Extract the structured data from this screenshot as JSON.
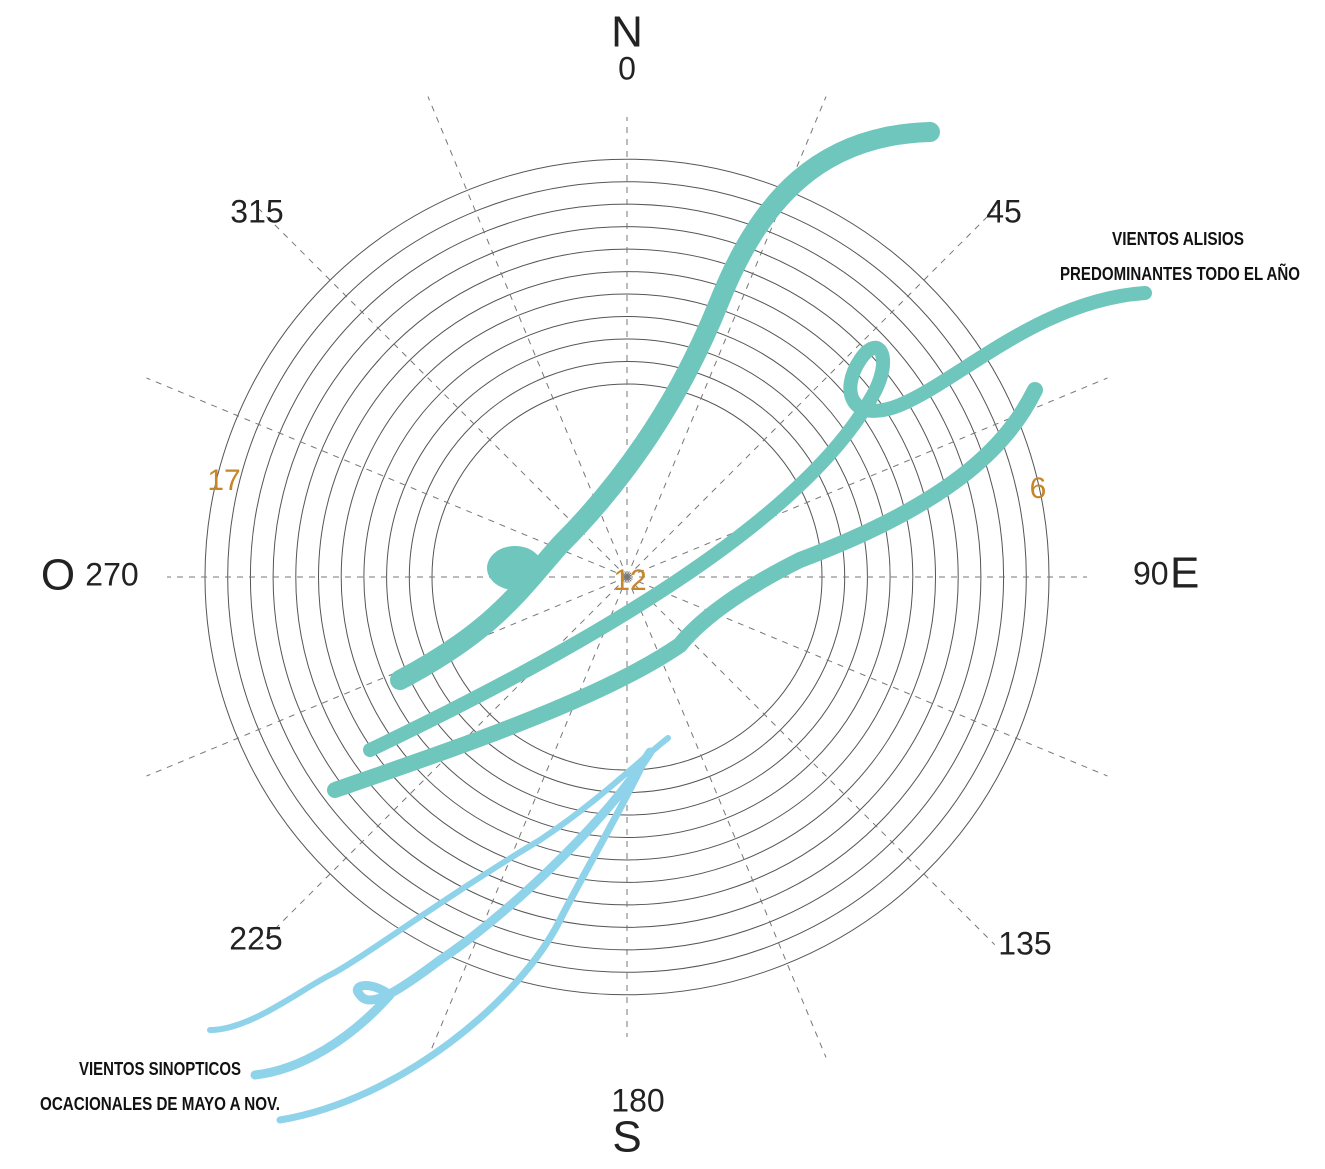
{
  "compass": {
    "north": {
      "letter": "N",
      "degrees": "0"
    },
    "northeast": {
      "degrees": "45"
    },
    "east": {
      "letter": "E",
      "degrees": "90"
    },
    "southeast": {
      "degrees": "135"
    },
    "south": {
      "letter": "S",
      "degrees": "180"
    },
    "southwest": {
      "degrees": "225"
    },
    "west": {
      "letter": "O",
      "degrees": "270"
    },
    "northwest": {
      "degrees": "315"
    }
  },
  "hours": {
    "morning": "6",
    "noon": "12",
    "evening": "17"
  },
  "annotations": {
    "trade_winds": [
      "VIENTOS ALISIOS",
      "PREDOMINANTES TODO EL AÑO"
    ],
    "synoptic_winds": [
      "VIENTOS SINOPTICOS",
      "OCACIONALES DE MAYO A NOV."
    ]
  }
}
